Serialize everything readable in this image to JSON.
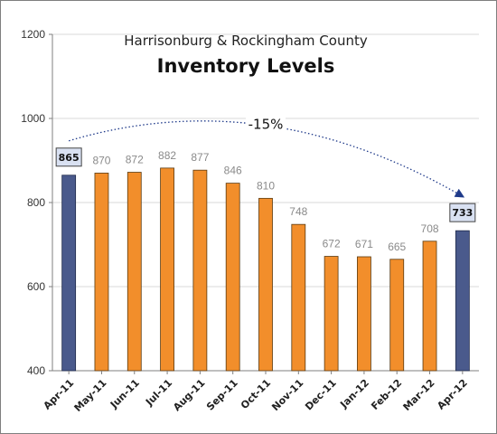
{
  "chart_data": {
    "type": "bar",
    "title": "Inventory Levels",
    "subtitle": "Harrisonburg & Rockingham County",
    "xlabel": "",
    "ylabel": "",
    "ylim": [
      400,
      1200
    ],
    "yticks": [
      400,
      600,
      800,
      1000,
      1200
    ],
    "grid": true,
    "categories": [
      "Apr-11",
      "May-11",
      "Jun-11",
      "Jul-11",
      "Aug-11",
      "Sep-11",
      "Oct-11",
      "Nov-11",
      "Dec-11",
      "Jan-12",
      "Feb-12",
      "Mar-12",
      "Apr-12"
    ],
    "values": [
      865,
      870,
      872,
      882,
      877,
      846,
      810,
      748,
      672,
      671,
      665,
      708,
      733
    ],
    "highlight_indices": [
      0,
      12
    ],
    "colors": {
      "bar": "#f28e2b",
      "highlight": "#4a5a8c",
      "label_box": "#d9e1f2",
      "grid": "#d9d9d9"
    },
    "annotation": {
      "text": "-15%",
      "from_index": 0,
      "to_index": 12
    }
  }
}
